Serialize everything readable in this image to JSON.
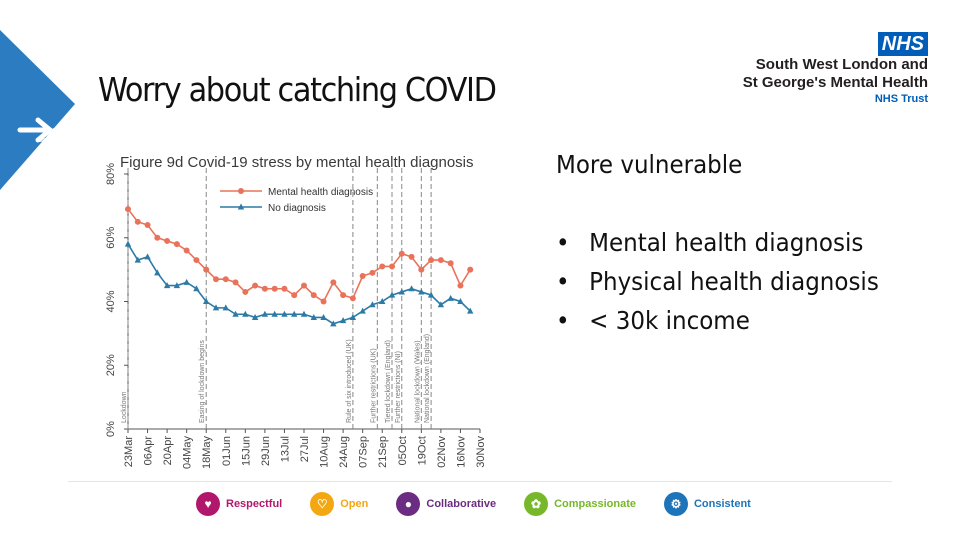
{
  "slide": {
    "title": "Worry about catching COVID"
  },
  "logo": {
    "nhs": "NHS",
    "line1": "South West London and",
    "line2": "St George's Mental Health",
    "line3": "NHS Trust"
  },
  "right_panel": {
    "heading": "More vulnerable",
    "bullets": [
      "Mental health diagnosis",
      "Physical health diagnosis",
      "< 30k income"
    ],
    "bullet_char": "•"
  },
  "footer": {
    "values": [
      {
        "label": "Respectful",
        "color": "#b1176b",
        "icon": "handshake-icon"
      },
      {
        "label": "Open",
        "color": "#f3a712",
        "icon": "open-heart-icon"
      },
      {
        "label": "Collaborative",
        "color": "#6b2d82",
        "icon": "people-icon"
      },
      {
        "label": "Compassionate",
        "color": "#76b82a",
        "icon": "compassion-icon"
      },
      {
        "label": "Consistent",
        "color": "#1d74b8",
        "icon": "gear-icon"
      }
    ]
  },
  "colors": {
    "brand_blue": "#005eb8",
    "corner_blue": "#2b7cc1",
    "mh_series": "#e9735a",
    "no_dx_series": "#2d7aa6"
  },
  "chart_data": {
    "type": "line",
    "title": "Figure 9d Covid-19 stress by mental health diagnosis",
    "xlabel": "",
    "ylabel": "",
    "ylim": [
      0,
      80
    ],
    "yticks": [
      0,
      20,
      40,
      60,
      80
    ],
    "ytick_labels": [
      "0%",
      "20%",
      "40%",
      "60%",
      "80%"
    ],
    "grid": false,
    "legend": "top-left",
    "x_tick_labels": [
      "23Mar",
      "06Apr",
      "20Apr",
      "04May",
      "18May",
      "01Jun",
      "15Jun",
      "29Jun",
      "13Jul",
      "27Jul",
      "10Aug",
      "24Aug",
      "07Sep",
      "21Sep",
      "05Oct",
      "19Oct",
      "02Nov",
      "16Nov",
      "30Nov"
    ],
    "x_week_range": [
      0,
      36
    ],
    "series": [
      {
        "name": "Mental health diagnosis",
        "marker": "circle",
        "x": [
          0,
          1,
          2,
          3,
          4,
          5,
          6,
          7,
          8,
          9,
          10,
          11,
          12,
          13,
          14,
          15,
          16,
          17,
          18,
          19,
          20,
          21,
          22,
          23,
          24,
          25,
          26,
          27,
          28,
          29,
          30,
          31,
          32,
          33,
          34,
          35
        ],
        "values": [
          69,
          65,
          64,
          60,
          59,
          58,
          56,
          53,
          50,
          47,
          47,
          46,
          43,
          45,
          44,
          44,
          44,
          42,
          45,
          42,
          40,
          46,
          42,
          41,
          48,
          49,
          51,
          51,
          55,
          54,
          50,
          53,
          53,
          52,
          45,
          50
        ]
      },
      {
        "name": "No diagnosis",
        "marker": "triangle",
        "x": [
          0,
          1,
          2,
          3,
          4,
          5,
          6,
          7,
          8,
          9,
          10,
          11,
          12,
          13,
          14,
          15,
          16,
          17,
          18,
          19,
          20,
          21,
          22,
          23,
          24,
          25,
          26,
          27,
          28,
          29,
          30,
          31,
          32,
          33,
          34,
          35
        ],
        "values": [
          58,
          53,
          54,
          49,
          45,
          45,
          46,
          44,
          40,
          38,
          38,
          36,
          36,
          35,
          36,
          36,
          36,
          36,
          36,
          35,
          35,
          33,
          34,
          35,
          37,
          39,
          40,
          42,
          43,
          44,
          43,
          42,
          39,
          41,
          40,
          37
        ]
      }
    ],
    "annotations": [
      {
        "x": 0,
        "text": "Lockdown"
      },
      {
        "x": 8,
        "text": "Easing of lockdown begins"
      },
      {
        "x": 23,
        "text": "Rule of six introduced (UK)"
      },
      {
        "x": 25.5,
        "text": "Further restrictions (UK)"
      },
      {
        "x": 27,
        "text": "Tiered lockdown (England)"
      },
      {
        "x": 28,
        "text": "Further restrictions (NI)"
      },
      {
        "x": 30,
        "text": "National lockdown (Wales)"
      },
      {
        "x": 31,
        "text": "National lockdown (England)"
      }
    ]
  }
}
